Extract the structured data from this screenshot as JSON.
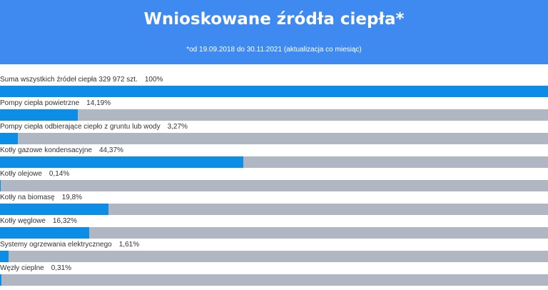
{
  "header": {
    "title": "Wnioskowane źródła ciepła*",
    "subtitle": "*od 19.09.2018 do 30.11.2021 (aktualizacja co miesiąc)"
  },
  "colors": {
    "header_bg": "#3f8af0",
    "bar_fill": "#0d8ee6",
    "bar_track": "#b0b7c3"
  },
  "chart_data": {
    "type": "bar",
    "orientation": "horizontal",
    "title": "Wnioskowane źródła ciepła*",
    "subtitle": "*od 19.09.2018 do 30.11.2021 (aktualizacja co miesiąc)",
    "xlim": [
      0,
      100
    ],
    "categories": [
      "Suma wszystkich źródeł ciepła 329 972 szt.",
      "Pompy ciepła powietrzne",
      "Pompy ciepła odbierające ciepło z gruntu lub wody",
      "Kotły gazowe kondensacyjne",
      "Kotły olejowe",
      "Kotły na biomasę",
      "Kotły węglowe",
      "Systemy ogrzewania elektrycznego",
      "Węzły cieplne"
    ],
    "values": [
      100,
      14.19,
      3.27,
      44.37,
      0.14,
      19.8,
      16.32,
      1.61,
      0.31
    ],
    "value_labels": [
      "100%",
      "14,19%",
      "3,27%",
      "44,37%",
      "0,14%",
      "19,8%",
      "16,32%",
      "1,61%",
      "0,31%"
    ]
  }
}
